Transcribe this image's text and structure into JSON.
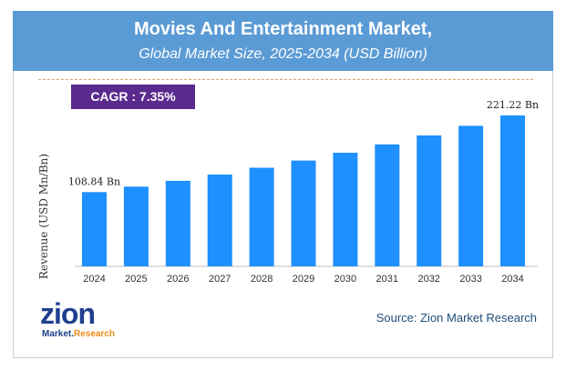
{
  "header": {
    "title": "Movies And Entertainment Market,",
    "subtitle": "Global Market Size, 2025-2034 (USD Billion)"
  },
  "cagr_label": "CAGR : 7.35%",
  "source": "Source: Zion Market Research",
  "logo": {
    "word": "zion",
    "sub_left": "Market.",
    "sub_right": "Research"
  },
  "colors": {
    "header": "#5b9bd5",
    "bar": "#1e90ff",
    "cagr": "#5b2a8e"
  },
  "chart_data": {
    "type": "bar",
    "title": "Movies And Entertainment Market,",
    "subtitle": "Global Market Size, 2025-2034 (USD Billion)",
    "xlabel": "",
    "ylabel": "Revenue (USD Mn/Bn)",
    "categories": [
      "2024",
      "2025",
      "2026",
      "2027",
      "2028",
      "2029",
      "2030",
      "2031",
      "2032",
      "2033",
      "2034"
    ],
    "values": [
      108.84,
      116.84,
      125.43,
      134.65,
      144.55,
      155.17,
      166.58,
      178.82,
      191.96,
      206.07,
      221.22
    ],
    "value_labels": [
      "108.84 Bn",
      "",
      "",
      "",
      "",
      "",
      "",
      "",
      "",
      "",
      "221.22 Bn"
    ],
    "ylim": [
      0,
      221.22
    ],
    "grid": false,
    "legend": "none"
  }
}
